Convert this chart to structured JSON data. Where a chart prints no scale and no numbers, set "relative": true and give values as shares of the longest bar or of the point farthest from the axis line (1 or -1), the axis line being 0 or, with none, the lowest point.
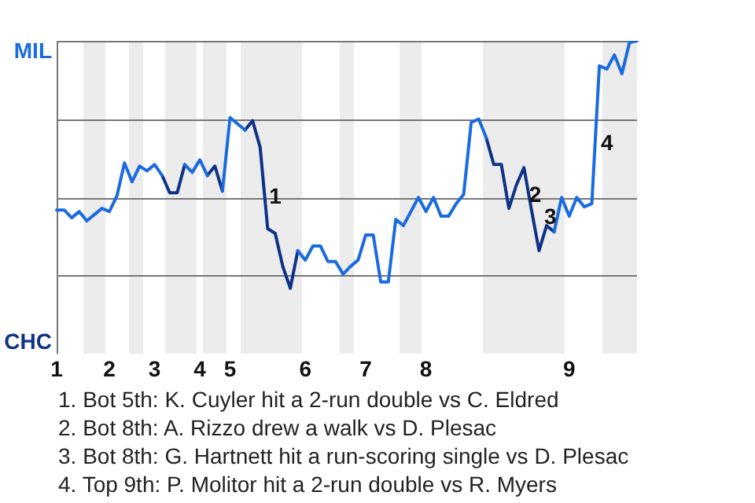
{
  "chart_data": {
    "type": "line",
    "relative": true,
    "categories": [
      "1",
      null,
      null,
      null,
      null,
      null,
      null,
      "2",
      null,
      null,
      null,
      null,
      null,
      "3",
      null,
      null,
      null,
      null,
      null,
      "4",
      null,
      null,
      null,
      "5",
      null,
      null,
      null,
      null,
      null,
      null,
      null,
      null,
      null,
      "6",
      null,
      null,
      null,
      null,
      null,
      null,
      null,
      "7",
      null,
      null,
      null,
      null,
      null,
      null,
      null,
      "8",
      null,
      null,
      null,
      null,
      null,
      null,
      null,
      null,
      null,
      null,
      null,
      null,
      null,
      null,
      null,
      null,
      null,
      null,
      "9",
      null,
      null,
      null,
      null,
      null,
      null,
      null,
      null,
      null
    ],
    "series": [
      {
        "name": "MIL",
        "color": "#1a6ae0",
        "values": [
          -0.08,
          -0.08,
          -0.13,
          -0.09,
          -0.15,
          -0.11,
          -0.07,
          -0.09,
          0.01,
          0.22,
          0.1,
          0.2,
          0.17,
          0.21,
          0.14,
          null,
          null,
          0.21,
          0.16,
          0.24,
          0.14,
          null,
          0.04,
          0.51,
          0.47,
          0.43,
          null,
          null,
          null,
          null,
          null,
          null,
          -0.34,
          -0.4,
          -0.31,
          -0.31,
          -0.41,
          -0.41,
          -0.49,
          -0.44,
          -0.4,
          -0.24,
          -0.24,
          -0.54,
          -0.54,
          -0.14,
          -0.18,
          -0.09,
          0,
          -0.09,
          0,
          -0.12,
          -0.12,
          -0.04,
          0.02,
          0.48,
          0.5,
          0.38,
          null,
          null,
          null,
          null,
          null,
          null,
          null,
          null,
          -0.22,
          0,
          -0.12,
          0,
          -0.06,
          -0.04,
          0.84,
          0.82,
          0.91,
          0.79,
          0.99,
          1
        ]
      },
      {
        "name": "CHC",
        "color": "#0e3386",
        "values": [
          null,
          null,
          null,
          null,
          null,
          null,
          null,
          null,
          null,
          null,
          null,
          null,
          null,
          null,
          0.14,
          0.03,
          0.03,
          0.21,
          null,
          null,
          0.14,
          0.2,
          0.04,
          null,
          null,
          0.43,
          0.49,
          0.32,
          -0.2,
          -0.23,
          -0.44,
          -0.58,
          -0.34,
          null,
          null,
          null,
          null,
          null,
          null,
          null,
          null,
          null,
          null,
          null,
          null,
          null,
          null,
          null,
          null,
          null,
          null,
          null,
          null,
          null,
          null,
          null,
          null,
          0.38,
          0.21,
          0.21,
          -0.07,
          0.08,
          0.19,
          -0.08,
          -0.34,
          -0.18,
          -0.22,
          null,
          null,
          null,
          null,
          null,
          null,
          null,
          null,
          null,
          null,
          null
        ]
      }
    ],
    "grid": "y",
    "marker": "none",
    "line_style": "solid",
    "legend": "left",
    "annotations": [
      "1",
      "2",
      "3",
      "4",
      "1. Bot 5th: K. Cuyler hit a 2-run double vs C. Eldred",
      "2. Bot 8th: A. Rizzo drew a walk vs D. Plesac",
      "3. Bot 8th: G. Hartnett hit a run-scoring single vs D. Plesac",
      "4. Top 9th: P. Molitor hit a 2-run double vs R. Myers"
    ]
  }
}
